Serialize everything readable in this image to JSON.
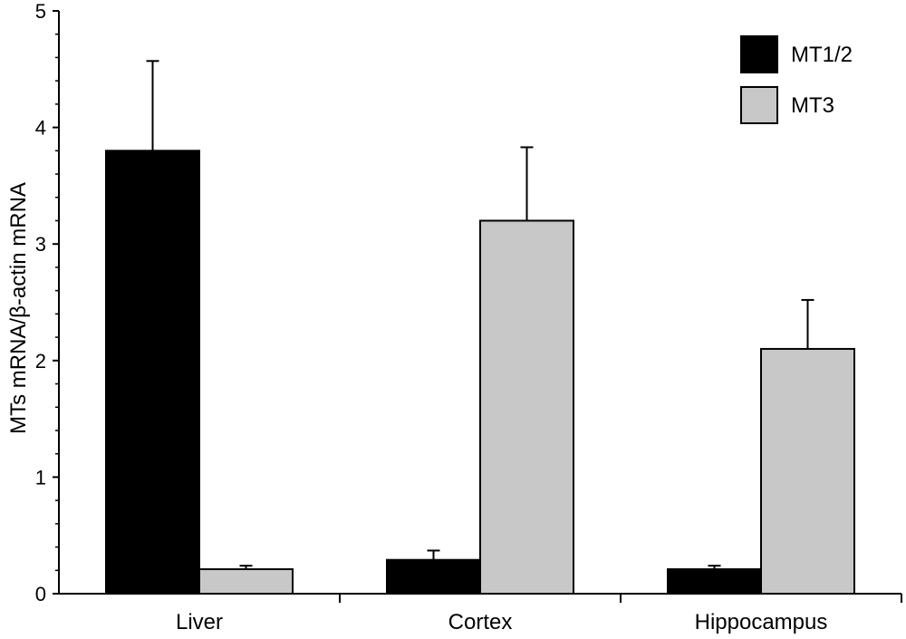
{
  "chart_data": {
    "type": "bar",
    "title": "",
    "xlabel": "",
    "ylabel": "MTs mRNA/β-actin mRNA",
    "ylim": [
      0,
      5
    ],
    "yticks": [
      "0",
      "1",
      "2",
      "3",
      "4",
      "5"
    ],
    "categories": [
      "Liver",
      "Cortex",
      "Hippocampus"
    ],
    "series": [
      {
        "name": "MT1/2",
        "color": "#000000",
        "values": [
          3.8,
          0.29,
          0.21
        ],
        "errors": [
          0.77,
          0.08,
          0.03
        ]
      },
      {
        "name": "MT3",
        "color": "#c8c8c8",
        "values": [
          0.21,
          3.2,
          2.1
        ],
        "errors": [
          0.03,
          0.63,
          0.42
        ]
      }
    ],
    "legend_position": "top-right",
    "grid": false
  }
}
